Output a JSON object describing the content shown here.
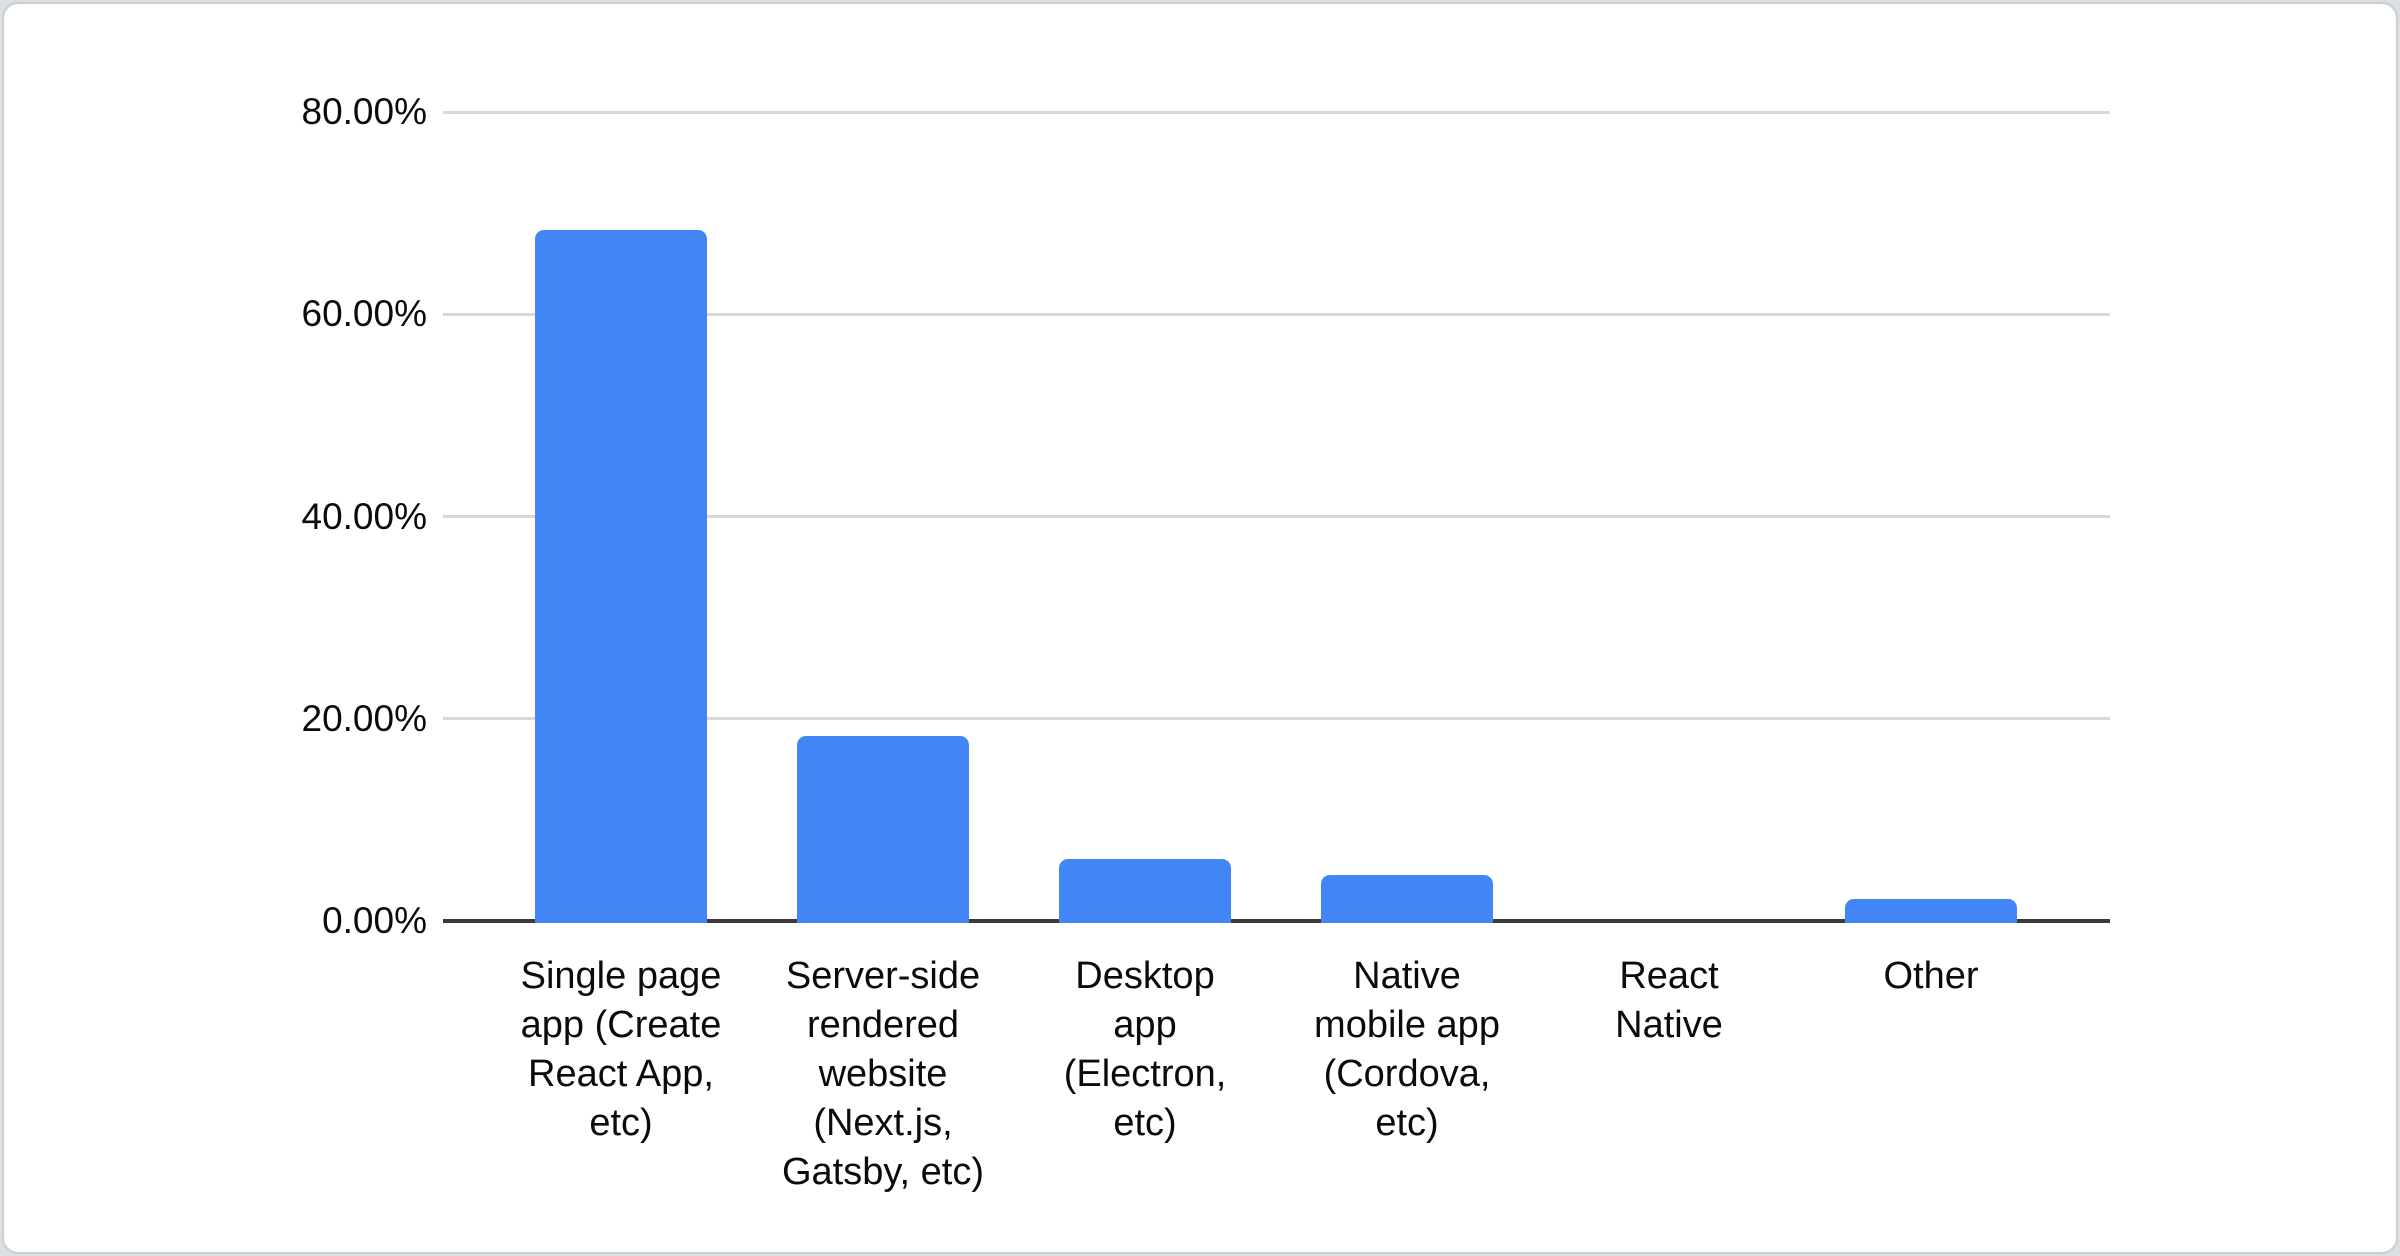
{
  "page": {
    "background_color": "#dcdfe3",
    "card_background": "#ffffff",
    "card_border_color": "#cbcfd4"
  },
  "chart_data": {
    "type": "bar",
    "title": "",
    "xlabel": "",
    "ylabel": "",
    "categories": [
      "Single page app (Create React App, etc)",
      "Server-side rendered website (Next.js, Gatsby, etc)",
      "Desktop app (Electron, etc)",
      "Native mobile app (Cordova, etc)",
      "React Native",
      "Other"
    ],
    "categories_lines": [
      [
        "Single page",
        "app (Create",
        "React App,",
        "etc)"
      ],
      [
        "Server-side",
        "rendered",
        "website",
        "(Next.js,",
        "Gatsby, etc)"
      ],
      [
        "Desktop",
        "app",
        "(Electron,",
        "etc)"
      ],
      [
        "Native",
        "mobile app",
        "(Cordova,",
        "etc)"
      ],
      [
        "React",
        "Native"
      ],
      [
        "Other"
      ]
    ],
    "values": [
      68.3,
      18.3,
      6.1,
      4.5,
      0.0,
      2.2
    ],
    "unit": "%",
    "ylim": [
      0,
      80
    ],
    "yticks": [
      0,
      20,
      40,
      60,
      80
    ],
    "ytick_labels": [
      "0.00%",
      "20.00%",
      "40.00%",
      "60.00%",
      "80.00%"
    ],
    "grid": true,
    "legend": false,
    "bar_color": "#4285f4",
    "gridline_color": "#d8d8d8",
    "axis_color": "#3a3a3a",
    "text_color": "#0b0b0b"
  }
}
